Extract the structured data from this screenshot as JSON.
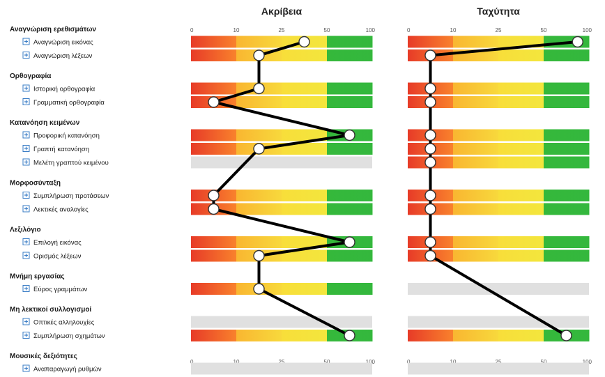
{
  "colors": {
    "red": "#e8432a",
    "orange": "#f9a82a",
    "yellow": "#f9df3a",
    "lightgreen": "#4cd03c",
    "darkgreen": "#2fa23e",
    "missing": "#e0e0e0",
    "line": "#000000",
    "marker_fill": "#ffffff",
    "expander": "#3a7dc6"
  },
  "chart_data": {
    "type": "line",
    "bands": [
      "0",
      "10",
      "25",
      "50",
      "100"
    ],
    "band_edges": [
      0,
      1,
      2,
      3,
      4
    ],
    "panels": [
      {
        "title": "Ακρίβεια"
      },
      {
        "title": "Ταχύτητα"
      }
    ],
    "groups": [
      {
        "title": "Αναγνώριση ερεθισμάτων",
        "items": [
          {
            "label": "Αναγνώριση εικόνας",
            "values": [
              2.5,
              3.75
            ]
          },
          {
            "label": "Αναγνώριση λέξεων",
            "values": [
              1.5,
              0.5
            ]
          }
        ]
      },
      {
        "title": "Ορθογραφία",
        "items": [
          {
            "label": "Ιστορική ορθογραφία",
            "values": [
              1.5,
              0.5
            ]
          },
          {
            "label": "Γραμματική ορθογραφία",
            "values": [
              0.5,
              0.5
            ]
          }
        ]
      },
      {
        "title": "Κατανόηση κειμένων",
        "items": [
          {
            "label": "Προφορική κατανόηση",
            "values": [
              3.5,
              0.5
            ]
          },
          {
            "label": "Γραπτή κατανόηση",
            "values": [
              1.5,
              0.5
            ]
          },
          {
            "label": "Μελέτη γραπτού κειμένου",
            "values": [
              null,
              0.5
            ]
          }
        ]
      },
      {
        "title": "Μορφοσύνταξη",
        "items": [
          {
            "label": "Συμπλήρωση προτάσεων",
            "values": [
              0.5,
              0.5
            ]
          },
          {
            "label": "Λεκτικές αναλογίες",
            "values": [
              0.5,
              0.5
            ]
          }
        ]
      },
      {
        "title": "Λεξιλόγιο",
        "items": [
          {
            "label": "Επιλογή εικόνας",
            "values": [
              3.5,
              0.5
            ]
          },
          {
            "label": "Ορισμός λέξεων",
            "values": [
              1.5,
              0.5
            ]
          }
        ]
      },
      {
        "title": "Μνήμη εργασίας",
        "items": [
          {
            "label": "Εύρος γραμμάτων",
            "values": [
              1.5,
              null
            ]
          }
        ]
      },
      {
        "title": "Μη λεκτικοί συλλογισμοί",
        "items": [
          {
            "label": "Οπτικές αλληλουχίες",
            "values": [
              null,
              null
            ]
          },
          {
            "label": "Συμπλήρωση σχημάτων",
            "values": [
              3.5,
              3.5
            ]
          }
        ]
      },
      {
        "title": "Μουσικές δεξιότητες",
        "items": [
          {
            "label": "Αναπαραγωγή ρυθμών",
            "values": [
              null,
              null
            ]
          }
        ]
      }
    ]
  }
}
